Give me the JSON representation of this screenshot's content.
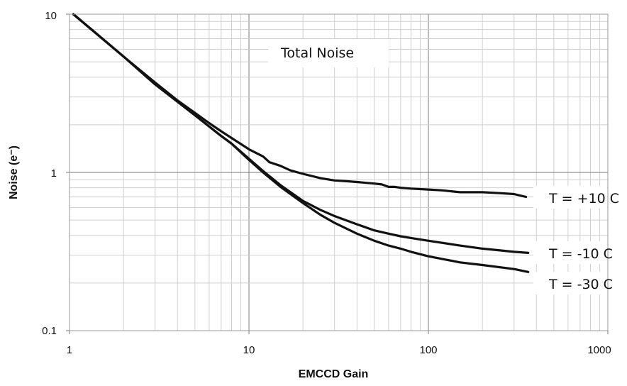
{
  "chart_data": {
    "type": "line",
    "title": "",
    "xlabel": "EMCCD Gain",
    "ylabel": "Noise (e⁻)",
    "x_scale": "log",
    "y_scale": "log",
    "xlim": [
      1,
      1000
    ],
    "ylim": [
      0.1,
      10
    ],
    "grid": true,
    "x_ticks": [
      "1",
      "10",
      "100",
      "1000"
    ],
    "y_ticks": [
      "0.1",
      "1",
      "10"
    ],
    "annotations": {
      "total_noise": "Total Noise"
    },
    "series": [
      {
        "name": "T = +10 C",
        "x": [
          1.05,
          2,
          3,
          4,
          5,
          6,
          7,
          8,
          10,
          12,
          13,
          15,
          17,
          20,
          25,
          30,
          35,
          40,
          50,
          55,
          60,
          65,
          70,
          80,
          100,
          120,
          150,
          200,
          250,
          300,
          350
        ],
        "y": [
          10,
          5.4,
          3.7,
          2.85,
          2.38,
          2.05,
          1.82,
          1.65,
          1.4,
          1.26,
          1.16,
          1.1,
          1.03,
          0.98,
          0.92,
          0.89,
          0.88,
          0.87,
          0.85,
          0.84,
          0.81,
          0.81,
          0.8,
          0.79,
          0.78,
          0.77,
          0.75,
          0.75,
          0.74,
          0.73,
          0.7
        ]
      },
      {
        "name": "T = -10 C",
        "x": [
          1.05,
          2,
          3,
          4,
          5,
          6,
          7,
          8,
          10,
          12,
          15,
          20,
          25,
          30,
          40,
          50,
          60,
          70,
          80,
          100,
          150,
          200,
          300,
          360
        ],
        "y": [
          10,
          5.4,
          3.6,
          2.8,
          2.3,
          1.95,
          1.7,
          1.52,
          1.22,
          1.02,
          0.83,
          0.66,
          0.58,
          0.53,
          0.47,
          0.43,
          0.41,
          0.395,
          0.385,
          0.37,
          0.345,
          0.33,
          0.315,
          0.31
        ]
      },
      {
        "name": "T = -30 C",
        "x": [
          1.05,
          2,
          3,
          4,
          5,
          6,
          7,
          8,
          10,
          12,
          15,
          20,
          25,
          30,
          40,
          50,
          60,
          70,
          80,
          100,
          150,
          200,
          300,
          360
        ],
        "y": [
          10,
          5.4,
          3.6,
          2.8,
          2.3,
          1.95,
          1.7,
          1.52,
          1.2,
          1.0,
          0.81,
          0.64,
          0.54,
          0.48,
          0.41,
          0.37,
          0.345,
          0.33,
          0.315,
          0.295,
          0.27,
          0.26,
          0.245,
          0.235
        ]
      }
    ]
  }
}
